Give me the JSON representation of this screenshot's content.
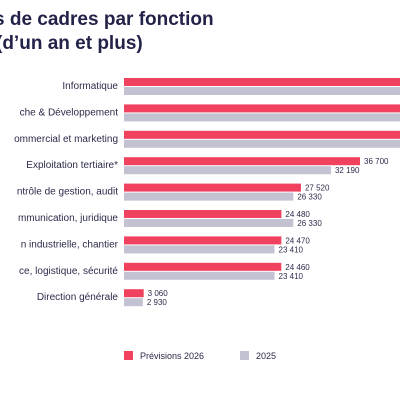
{
  "chart_data": {
    "type": "bar",
    "orientation": "horizontal",
    "title_line1": "s de cadres par fonction",
    "title_line2": "(d’un an et plus)",
    "categories": [
      "Informatique",
      "che & Développement",
      "ommercial et marketing",
      "Exploitation tertiaire*",
      "ntrôle de gestion, audit",
      "mmunication, juridique",
      "n industrielle, chantier",
      "ce, logistique, sécurité",
      "Direction générale"
    ],
    "series": [
      {
        "name": "Prévisions 2026",
        "color": "#f0425f",
        "values": [
          90000,
          90000,
          90000,
          36700,
          27520,
          24480,
          24470,
          24460,
          3060
        ],
        "labels": [
          "",
          "",
          "",
          "36 700",
          "27 520",
          "24 480",
          "24 470",
          "24 460",
          "3 060"
        ]
      },
      {
        "name": "2025",
        "color": "#c2c2d3",
        "values": [
          90000,
          90000,
          90000,
          32190,
          26330,
          26330,
          23410,
          23410,
          2930
        ],
        "labels": [
          "",
          "",
          "",
          "32 190",
          "26 330",
          "26 330",
          "23 410",
          "23 410",
          "2 930"
        ]
      }
    ],
    "grid": false,
    "legend": "bottom"
  }
}
